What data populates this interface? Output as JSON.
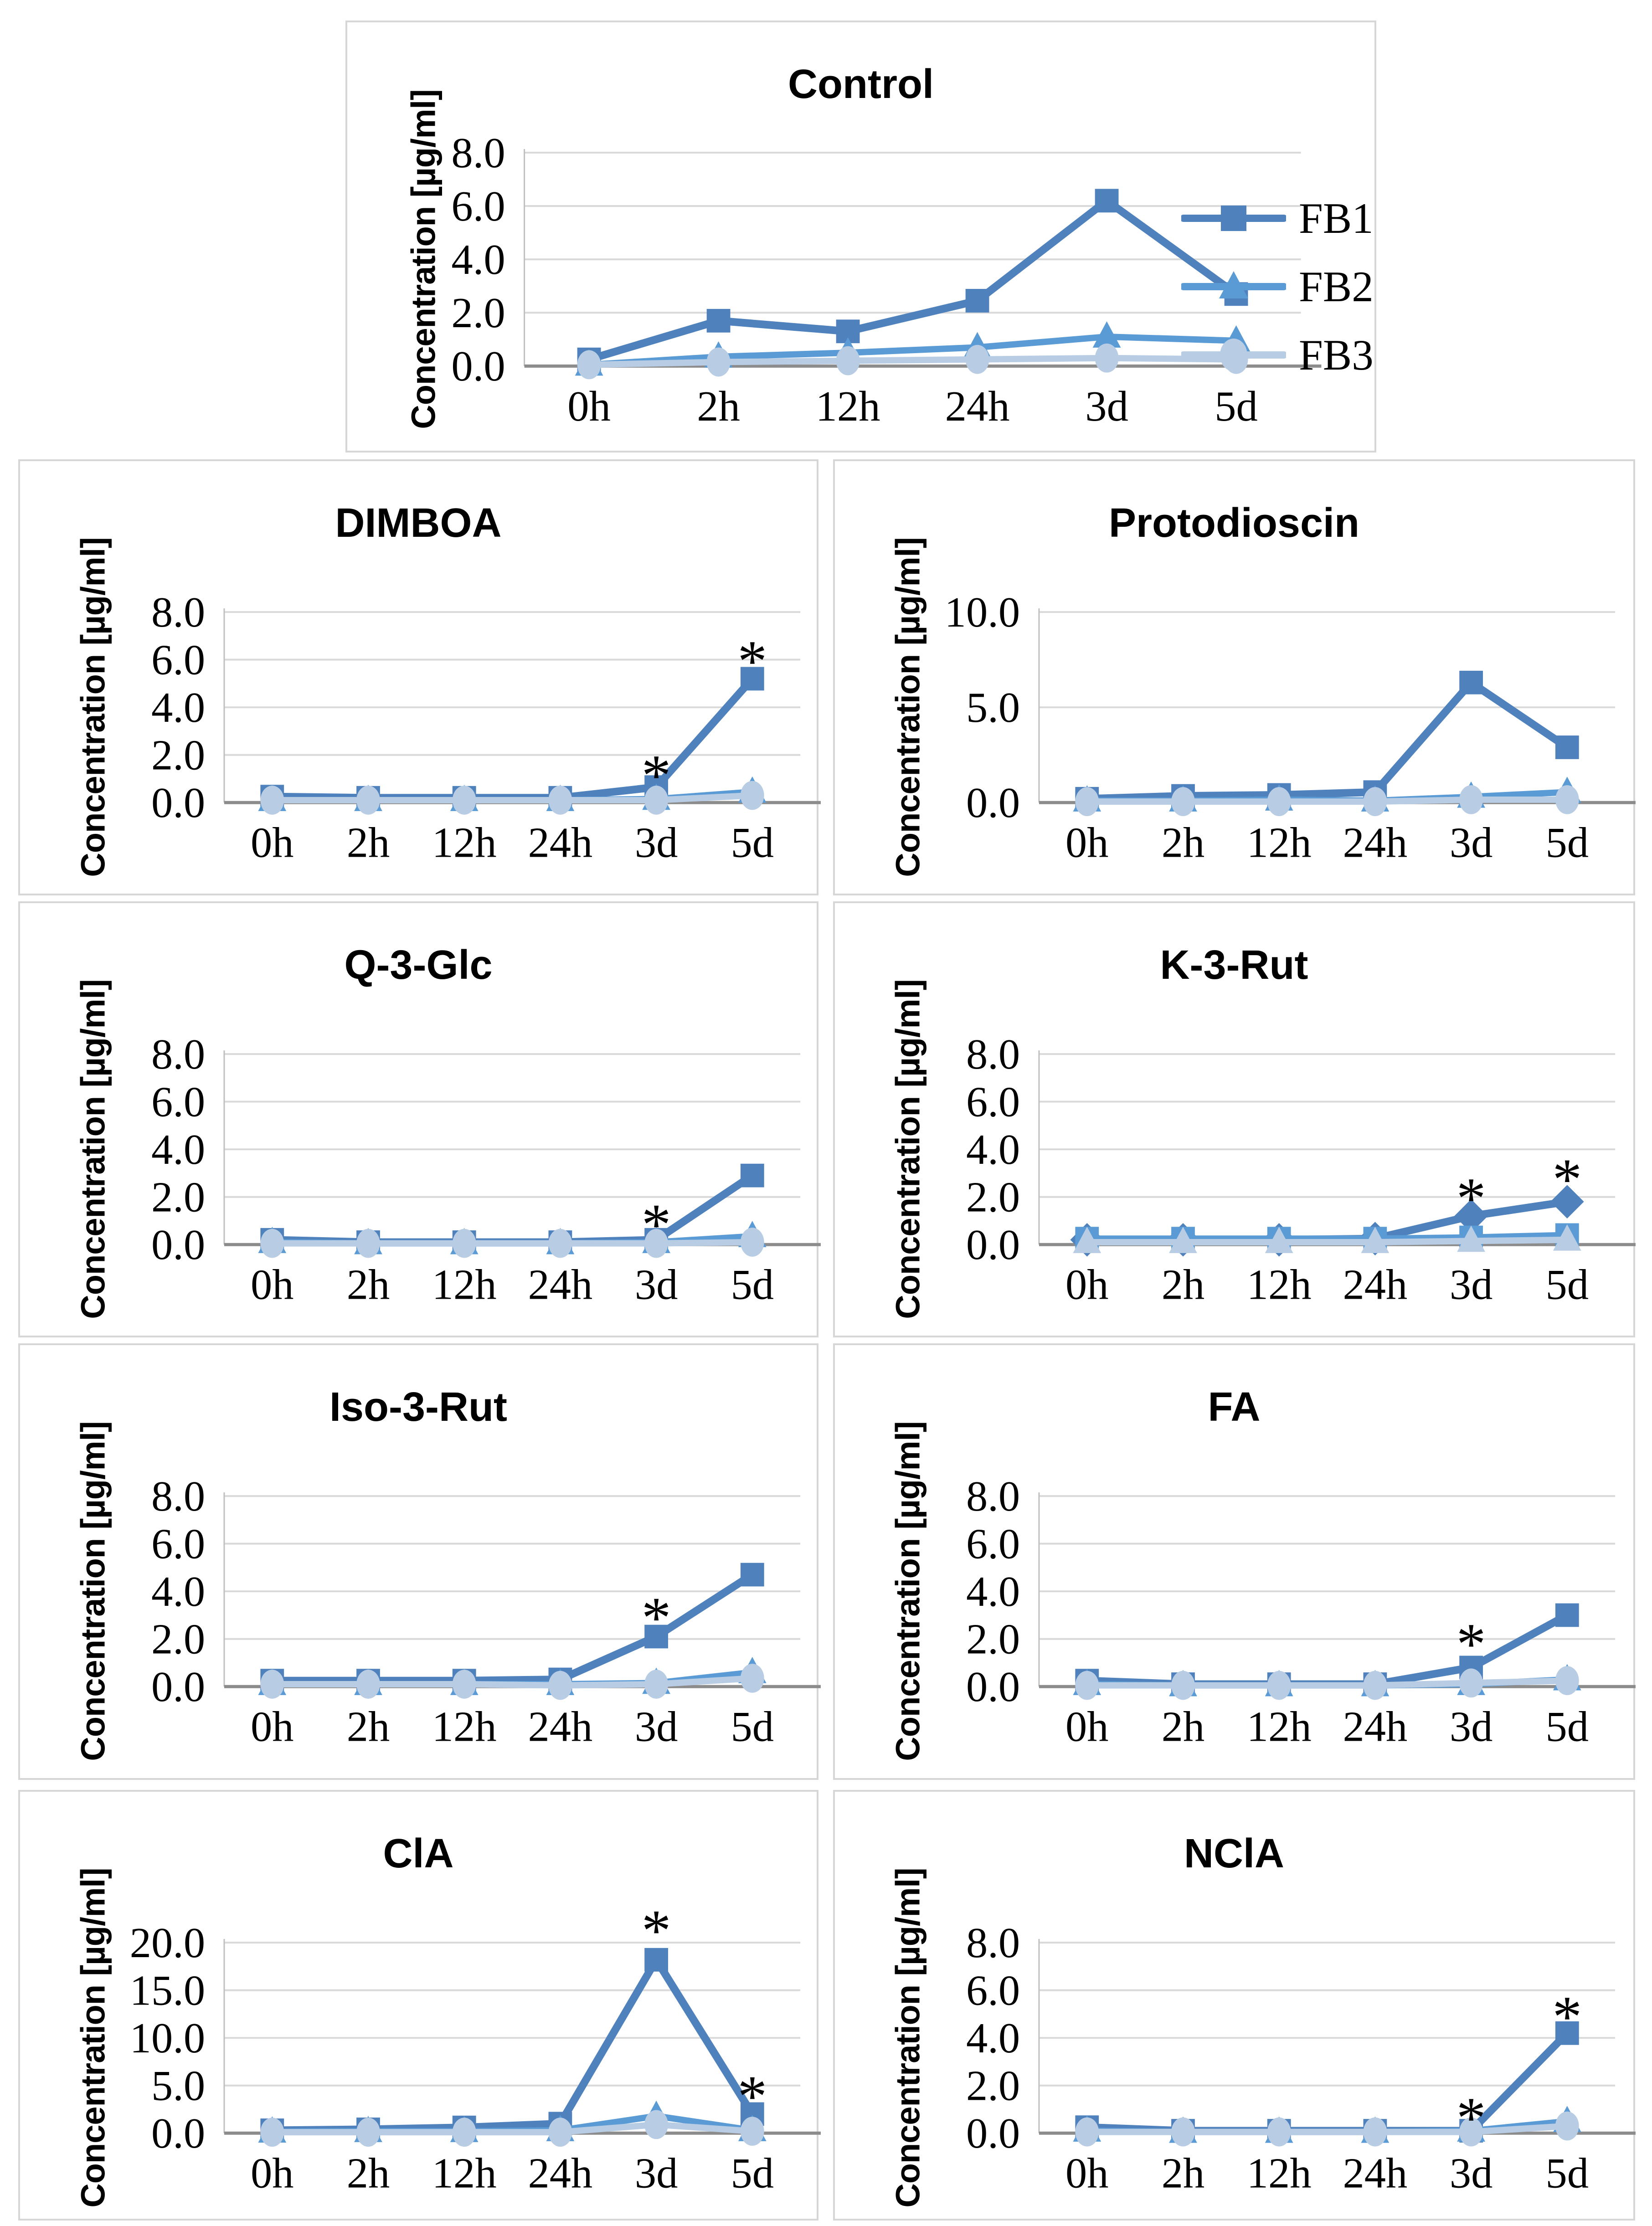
{
  "figure": {
    "y_axis_label": "Concentration [µg/ml]",
    "x_categories": [
      "0h",
      "2h",
      "12h",
      "24h",
      "3d",
      "5d"
    ],
    "colors": {
      "fb1": "#4f81bd",
      "fb2": "#5b9bd5",
      "fb3": "#b8cce4",
      "gridline": "#d9d9d9",
      "x_axis": "#8c8c8c",
      "y_spine": "#bfbfbf",
      "text": "#000000"
    },
    "significance_symbol": "*"
  },
  "legend": {
    "items": [
      {
        "label": "FB1",
        "marker": "square",
        "color": "#4f81bd"
      },
      {
        "label": "FB2",
        "marker": "triangle",
        "color": "#5b9bd5"
      },
      {
        "label": "FB3",
        "marker": "circle",
        "color": "#b8cce4"
      }
    ]
  },
  "chart_data": [
    {
      "id": "control",
      "type": "line",
      "title": "Control",
      "ylabel": "Concentration [µg/ml]",
      "categories": [
        "0h",
        "2h",
        "12h",
        "24h",
        "3d",
        "5d"
      ],
      "ylim": [
        0,
        8
      ],
      "ytick_step": 2,
      "grid": true,
      "legend_position": "right",
      "series": [
        {
          "name": "FB1",
          "marker": "square",
          "color": "#4f81bd",
          "values": [
            0.25,
            1.7,
            1.3,
            2.45,
            6.2,
            2.7
          ]
        },
        {
          "name": "FB2",
          "marker": "triangle",
          "color": "#5b9bd5",
          "values": [
            0.05,
            0.35,
            0.5,
            0.7,
            1.1,
            0.95
          ]
        },
        {
          "name": "FB3",
          "marker": "circle",
          "color": "#b8cce4",
          "values": [
            0.05,
            0.15,
            0.2,
            0.25,
            0.3,
            0.25
          ]
        }
      ],
      "annotations": []
    },
    {
      "id": "dimboa",
      "type": "line",
      "title": "DIMBOA",
      "ylabel": "Concentration [µg/ml]",
      "categories": [
        "0h",
        "2h",
        "12h",
        "24h",
        "3d",
        "5d"
      ],
      "ylim": [
        0,
        8
      ],
      "ytick_step": 2,
      "grid": true,
      "legend_position": "none",
      "series": [
        {
          "name": "FB1",
          "marker": "square",
          "color": "#4f81bd",
          "values": [
            0.25,
            0.2,
            0.2,
            0.2,
            0.65,
            5.2
          ]
        },
        {
          "name": "FB2",
          "marker": "triangle",
          "color": "#5b9bd5",
          "values": [
            0.1,
            0.1,
            0.1,
            0.1,
            0.15,
            0.45
          ]
        },
        {
          "name": "FB3",
          "marker": "circle",
          "color": "#b8cce4",
          "values": [
            0.1,
            0.1,
            0.1,
            0.1,
            0.1,
            0.3
          ]
        }
      ],
      "annotations": [
        {
          "category": "3d",
          "text": "*",
          "y": 1.55
        },
        {
          "category": "5d",
          "text": "*",
          "y": 6.35
        }
      ]
    },
    {
      "id": "protodioscin",
      "type": "line",
      "title": "Protodioscin",
      "ylabel": "Concentration [µg/ml]",
      "categories": [
        "0h",
        "2h",
        "12h",
        "24h",
        "3d",
        "5d"
      ],
      "ylim": [
        0,
        10
      ],
      "ytick_step": 5,
      "grid": true,
      "legend_position": "none",
      "series": [
        {
          "name": "FB1",
          "marker": "square",
          "color": "#4f81bd",
          "values": [
            0.2,
            0.35,
            0.4,
            0.55,
            6.3,
            2.9
          ]
        },
        {
          "name": "FB2",
          "marker": "triangle",
          "color": "#5b9bd5",
          "values": [
            0.1,
            0.1,
            0.15,
            0.1,
            0.3,
            0.55
          ]
        },
        {
          "name": "FB3",
          "marker": "circle",
          "color": "#b8cce4",
          "values": [
            0.05,
            0.05,
            0.05,
            0.05,
            0.15,
            0.15
          ]
        }
      ],
      "annotations": []
    },
    {
      "id": "q3glc",
      "type": "line",
      "title": "Q-3-Glc",
      "ylabel": "Concentration [µg/ml]",
      "categories": [
        "0h",
        "2h",
        "12h",
        "24h",
        "3d",
        "5d"
      ],
      "ylim": [
        0,
        8
      ],
      "ytick_step": 2,
      "grid": true,
      "legend_position": "none",
      "series": [
        {
          "name": "FB1",
          "marker": "square",
          "color": "#4f81bd",
          "values": [
            0.2,
            0.1,
            0.1,
            0.1,
            0.2,
            2.9
          ]
        },
        {
          "name": "FB2",
          "marker": "triangle",
          "color": "#5b9bd5",
          "values": [
            0.1,
            0.05,
            0.05,
            0.05,
            0.1,
            0.35
          ]
        },
        {
          "name": "FB3",
          "marker": "circle",
          "color": "#b8cce4",
          "values": [
            0.05,
            0.05,
            0.05,
            0.05,
            0.05,
            0.1
          ]
        }
      ],
      "annotations": [
        {
          "category": "3d",
          "text": "*",
          "y": 1.25
        }
      ]
    },
    {
      "id": "k3rut",
      "type": "line",
      "title": "K-3-Rut",
      "ylabel": "Concentration [µg/ml]",
      "categories": [
        "0h",
        "2h",
        "12h",
        "24h",
        "3d",
        "5d"
      ],
      "ylim": [
        0,
        8
      ],
      "ytick_step": 2,
      "grid": true,
      "legend_position": "none",
      "series": [
        {
          "name": "FB1",
          "marker": "diamond",
          "color": "#4f81bd",
          "values": [
            0.2,
            0.2,
            0.2,
            0.25,
            1.2,
            1.8
          ]
        },
        {
          "name": "FB2",
          "marker": "square",
          "color": "#5b9bd5",
          "values": [
            0.25,
            0.25,
            0.25,
            0.25,
            0.3,
            0.4
          ]
        },
        {
          "name": "FB3",
          "marker": "triangle",
          "color": "#b8cce4",
          "values": [
            0.1,
            0.1,
            0.1,
            0.1,
            0.15,
            0.2
          ]
        }
      ],
      "annotations": [
        {
          "category": "3d",
          "text": "*",
          "y": 2.35
        },
        {
          "category": "5d",
          "text": "*",
          "y": 3.15
        }
      ]
    },
    {
      "id": "iso3rut",
      "type": "line",
      "title": "Iso-3-Rut",
      "ylabel": "Concentration [µg/ml]",
      "categories": [
        "0h",
        "2h",
        "12h",
        "24h",
        "3d",
        "5d"
      ],
      "ylim": [
        0,
        8
      ],
      "ytick_step": 2,
      "grid": true,
      "legend_position": "none",
      "series": [
        {
          "name": "FB1",
          "marker": "square",
          "color": "#4f81bd",
          "values": [
            0.25,
            0.25,
            0.25,
            0.3,
            2.1,
            4.7
          ]
        },
        {
          "name": "FB2",
          "marker": "triangle",
          "color": "#5b9bd5",
          "values": [
            0.1,
            0.1,
            0.1,
            0.1,
            0.15,
            0.6
          ]
        },
        {
          "name": "FB3",
          "marker": "circle",
          "color": "#b8cce4",
          "values": [
            0.1,
            0.1,
            0.1,
            0.05,
            0.1,
            0.35
          ]
        }
      ],
      "annotations": [
        {
          "category": "3d",
          "text": "*",
          "y": 3.3
        }
      ]
    },
    {
      "id": "fa",
      "type": "line",
      "title": "FA",
      "ylabel": "Concentration [µg/ml]",
      "categories": [
        "0h",
        "2h",
        "12h",
        "24h",
        "3d",
        "5d"
      ],
      "ylim": [
        0,
        8
      ],
      "ytick_step": 2,
      "grid": true,
      "legend_position": "none",
      "series": [
        {
          "name": "FB1",
          "marker": "square",
          "color": "#4f81bd",
          "values": [
            0.25,
            0.1,
            0.1,
            0.1,
            0.8,
            3.0
          ]
        },
        {
          "name": "FB2",
          "marker": "triangle",
          "color": "#5b9bd5",
          "values": [
            0.1,
            0.05,
            0.05,
            0.05,
            0.1,
            0.3
          ]
        },
        {
          "name": "FB3",
          "marker": "circle",
          "color": "#b8cce4",
          "values": [
            0.05,
            0.05,
            0.05,
            0.05,
            0.15,
            0.25
          ]
        }
      ],
      "annotations": [
        {
          "category": "3d",
          "text": "*",
          "y": 2.2
        }
      ]
    },
    {
      "id": "cla",
      "type": "line",
      "title": "ClA",
      "ylabel": "Concentration [µg/ml]",
      "categories": [
        "0h",
        "2h",
        "12h",
        "24h",
        "3d",
        "5d"
      ],
      "ylim": [
        0,
        20
      ],
      "ytick_step": 5,
      "grid": true,
      "legend_position": "none",
      "series": [
        {
          "name": "FB1",
          "marker": "square",
          "color": "#4f81bd",
          "values": [
            0.3,
            0.4,
            0.6,
            1.0,
            18.2,
            2.0
          ]
        },
        {
          "name": "FB2",
          "marker": "triangle",
          "color": "#5b9bd5",
          "values": [
            0.15,
            0.2,
            0.2,
            0.3,
            1.8,
            0.3
          ]
        },
        {
          "name": "FB3",
          "marker": "circle",
          "color": "#b8cce4",
          "values": [
            0.1,
            0.1,
            0.1,
            0.1,
            0.9,
            0.2
          ]
        }
      ],
      "annotations": [
        {
          "category": "3d",
          "text": "*",
          "y": 22.3
        },
        {
          "category": "5d",
          "text": "*",
          "y": 4.9
        }
      ]
    },
    {
      "id": "ncla",
      "type": "line",
      "title": "NClA",
      "ylabel": "Concentration [µg/ml]",
      "categories": [
        "0h",
        "2h",
        "12h",
        "24h",
        "3d",
        "5d"
      ],
      "ylim": [
        0,
        8
      ],
      "ytick_step": 2,
      "grid": true,
      "legend_position": "none",
      "series": [
        {
          "name": "FB1",
          "marker": "square",
          "color": "#4f81bd",
          "values": [
            0.25,
            0.1,
            0.1,
            0.1,
            0.1,
            4.2
          ]
        },
        {
          "name": "FB2",
          "marker": "triangle",
          "color": "#5b9bd5",
          "values": [
            0.1,
            0.05,
            0.05,
            0.05,
            0.1,
            0.5
          ]
        },
        {
          "name": "FB3",
          "marker": "circle",
          "color": "#b8cce4",
          "values": [
            0.05,
            0.05,
            0.05,
            0.05,
            0.05,
            0.3
          ]
        }
      ],
      "annotations": [
        {
          "category": "3d",
          "text": "*",
          "y": 1.05
        },
        {
          "category": "5d",
          "text": "*",
          "y": 5.3
        }
      ]
    }
  ]
}
